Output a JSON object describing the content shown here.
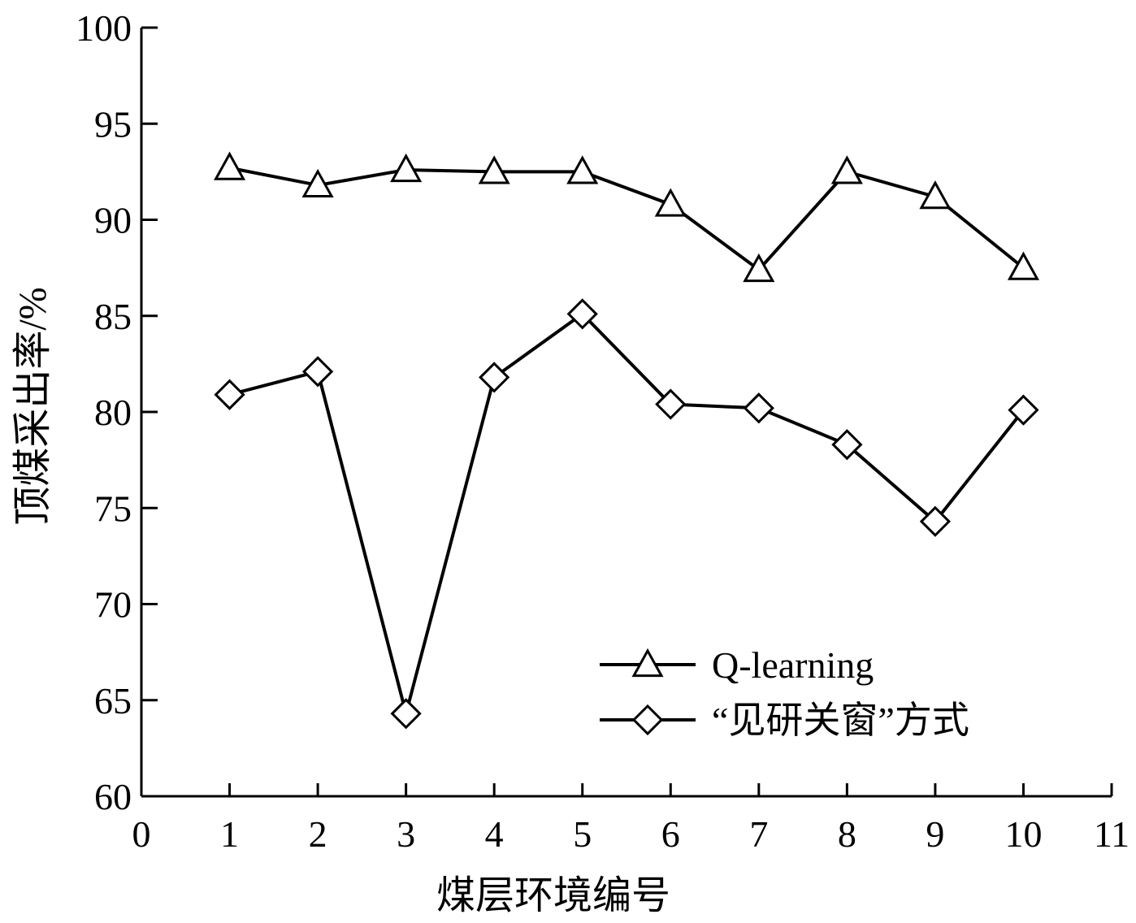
{
  "chart_data": {
    "type": "line",
    "title": "",
    "xlabel": "煤层环境编号",
    "ylabel": "顶煤采出率/%",
    "xlim": [
      0,
      11
    ],
    "ylim": [
      60,
      100
    ],
    "x_ticks": [
      0,
      1,
      2,
      3,
      4,
      5,
      6,
      7,
      8,
      9,
      10,
      11
    ],
    "y_ticks": [
      60,
      65,
      70,
      75,
      80,
      85,
      90,
      95,
      100
    ],
    "grid": false,
    "legend_position": "bottom-right",
    "x": [
      1,
      2,
      3,
      4,
      5,
      6,
      7,
      8,
      9,
      10
    ],
    "series": [
      {
        "name": "Q-learning",
        "marker": "triangle",
        "color": "#000000",
        "values": [
          92.7,
          91.8,
          92.6,
          92.5,
          92.5,
          90.8,
          87.4,
          92.5,
          91.2,
          87.5
        ]
      },
      {
        "name": "“见研关窗”方式",
        "marker": "diamond",
        "color": "#000000",
        "values": [
          80.9,
          82.1,
          64.3,
          81.8,
          85.1,
          80.4,
          80.2,
          78.3,
          74.3,
          80.1
        ]
      }
    ]
  }
}
